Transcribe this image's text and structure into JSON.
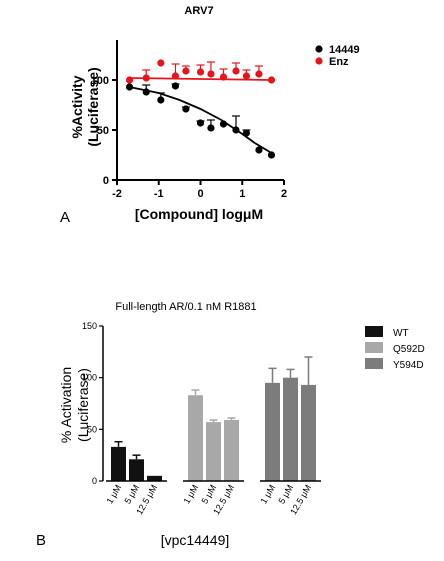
{
  "chart_data": [
    {
      "type": "scatter",
      "panel_label": "A",
      "title": "ARV7",
      "xlabel": "[Compound] logμM",
      "ylabel": "%Activity (Luciferase)",
      "ylabel_lines": [
        "%Activity",
        "(Luciferase)"
      ],
      "xlim": [
        -2,
        2
      ],
      "ylim": [
        0,
        140
      ],
      "xticks": [
        "-2",
        "-1",
        "0",
        "1",
        "2"
      ],
      "yticks": [
        "0",
        "50",
        "100"
      ],
      "legend_position": "right",
      "series": [
        {
          "name": "14449",
          "color": "#000000",
          "points": [
            {
              "x": -1.7,
              "y": 93,
              "err": 0
            },
            {
              "x": -1.3,
              "y": 88,
              "err": 7
            },
            {
              "x": -0.95,
              "y": 80,
              "err": 7
            },
            {
              "x": -0.6,
              "y": 94,
              "err": 2
            },
            {
              "x": -0.35,
              "y": 71,
              "err": 2
            },
            {
              "x": 0,
              "y": 57,
              "err": 2
            },
            {
              "x": 0.25,
              "y": 52,
              "err": 8
            },
            {
              "x": 0.55,
              "y": 56,
              "err": 0
            },
            {
              "x": 0.85,
              "y": 50,
              "err": 14
            },
            {
              "x": 1.1,
              "y": 47,
              "err": 3
            },
            {
              "x": 1.4,
              "y": 30,
              "err": 0
            },
            {
              "x": 1.7,
              "y": 25,
              "err": 0
            }
          ],
          "fit": [
            [
              -1.7,
              93
            ],
            [
              -1.0,
              87
            ],
            [
              -0.5,
              80
            ],
            [
              0,
              71
            ],
            [
              0.5,
              60
            ],
            [
              1.0,
              46
            ],
            [
              1.3,
              37
            ],
            [
              1.7,
              27
            ]
          ]
        },
        {
          "name": "Enz",
          "color": "#e8141c",
          "points": [
            {
              "x": -1.7,
              "y": 100,
              "err": 0
            },
            {
              "x": -1.3,
              "y": 102,
              "err": 8
            },
            {
              "x": -0.95,
              "y": 117,
              "err": 0
            },
            {
              "x": -0.6,
              "y": 104,
              "err": 12
            },
            {
              "x": -0.35,
              "y": 109,
              "err": 5
            },
            {
              "x": 0,
              "y": 108,
              "err": 7
            },
            {
              "x": 0.25,
              "y": 106,
              "err": 12
            },
            {
              "x": 0.55,
              "y": 103,
              "err": 8
            },
            {
              "x": 0.85,
              "y": 109,
              "err": 8
            },
            {
              "x": 1.1,
              "y": 104,
              "err": 6
            },
            {
              "x": 1.4,
              "y": 106,
              "err": 8
            },
            {
              "x": 1.7,
              "y": 100,
              "err": 0
            }
          ],
          "fit": [
            [
              -1.7,
              102
            ],
            [
              1.7,
              100
            ]
          ]
        }
      ]
    },
    {
      "type": "bar",
      "panel_label": "B",
      "title": "Full-length AR/0.1 nM R1881",
      "xlabel": "[vpc14449]",
      "ylabel": "% Activation (Luciferase)",
      "ylabel_lines": [
        "% Activation",
        "(Luciferase)"
      ],
      "ylim": [
        0,
        150
      ],
      "yticks": [
        "0",
        "50",
        "100",
        "150"
      ],
      "legend_position": "right",
      "groups": [
        {
          "name": "WT",
          "color": "#111111",
          "categories": [
            "1 μM",
            "5 μM",
            "12.5 μM"
          ],
          "values": [
            33,
            21,
            5
          ],
          "errors": [
            5,
            4,
            0
          ]
        },
        {
          "name": "Q592D",
          "color": "#a8a8a8",
          "categories": [
            "1 μM",
            "5 μM",
            "12.5 μM"
          ],
          "values": [
            83,
            57,
            59
          ],
          "errors": [
            5,
            2,
            2
          ]
        },
        {
          "name": "Y594D",
          "color": "#7c7c7c",
          "categories": [
            "1 μM",
            "5 μM",
            "12.5 μM"
          ],
          "values": [
            95,
            100,
            93
          ],
          "errors": [
            14,
            8,
            27
          ]
        }
      ]
    }
  ]
}
